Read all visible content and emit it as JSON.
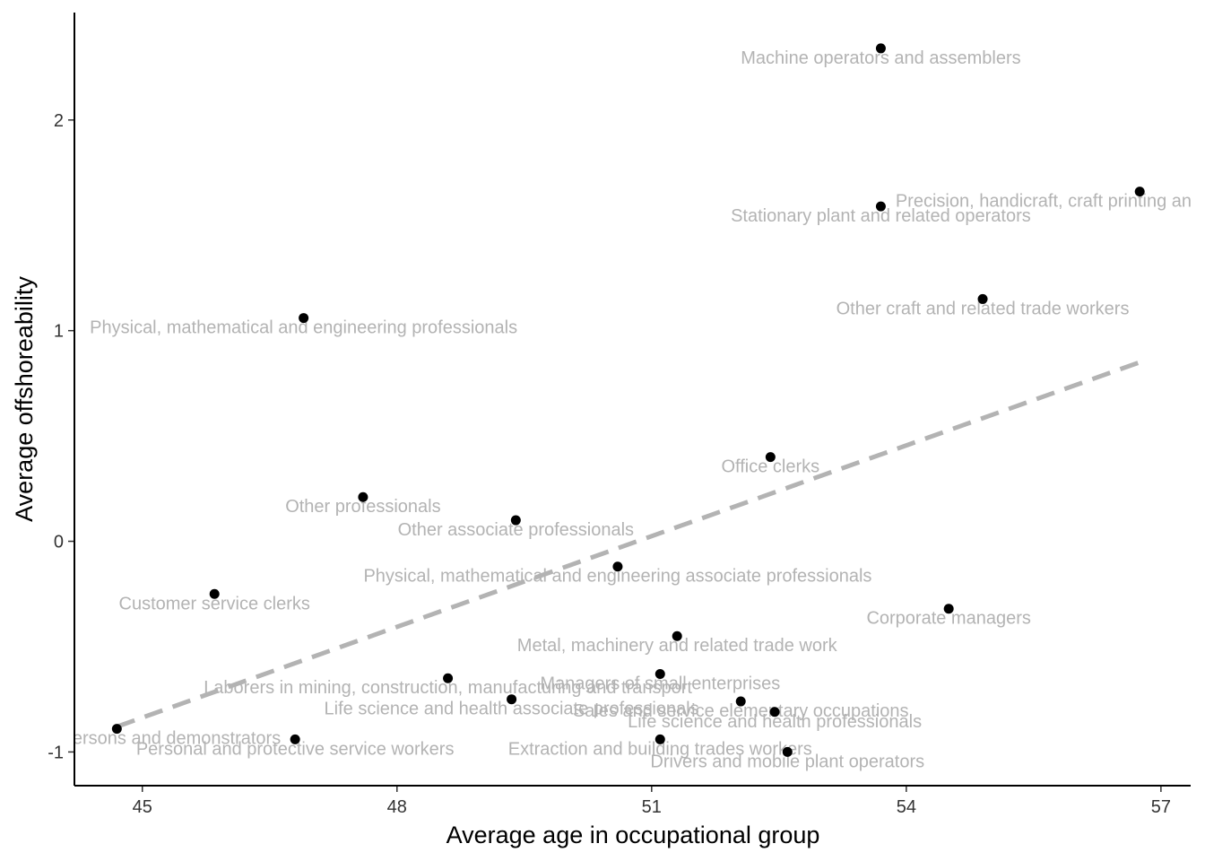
{
  "chart_data": {
    "type": "scatter",
    "xlabel": "Average age in occupational group",
    "ylabel": "Average offshoreability",
    "xlim": [
      44.2,
      57.35
    ],
    "ylim": [
      -1.16,
      2.51
    ],
    "x_ticks": [
      45,
      48,
      51,
      54,
      57
    ],
    "y_ticks": [
      -1,
      0,
      1,
      2
    ],
    "grid": false,
    "point_color": "#000000",
    "label_color": "#b3b3b3",
    "trend_color": "#b3b3b3",
    "trend_line": {
      "style": "dashed",
      "x": [
        44.7,
        56.75
      ],
      "y": [
        -0.88,
        0.85
      ]
    },
    "points": [
      {
        "label": "Machine operators and assemblers",
        "x": 53.7,
        "y": 2.34
      },
      {
        "label": "Precision, handicraft, craft printing and related trades workers",
        "x": 56.75,
        "y": 1.66
      },
      {
        "label": "Stationary plant and related operators",
        "x": 53.7,
        "y": 1.59
      },
      {
        "label": "Other craft and related trade workers",
        "x": 54.9,
        "y": 1.15
      },
      {
        "label": "Physical, mathematical and engineering professionals",
        "x": 46.9,
        "y": 1.06
      },
      {
        "label": "Office clerks",
        "x": 52.4,
        "y": 0.4
      },
      {
        "label": "Other professionals",
        "x": 47.6,
        "y": 0.21
      },
      {
        "label": "Other associate professionals",
        "x": 49.4,
        "y": 0.1
      },
      {
        "label": "Physical, mathematical and engineering associate professionals",
        "x": 50.6,
        "y": -0.12
      },
      {
        "label": "Customer service clerks",
        "x": 45.85,
        "y": -0.25
      },
      {
        "label": "Corporate managers",
        "x": 54.5,
        "y": -0.32
      },
      {
        "label": "Metal, machinery and related trade work",
        "x": 51.3,
        "y": -0.45
      },
      {
        "label": "Managers of small enterprises",
        "x": 51.1,
        "y": -0.63
      },
      {
        "label": "Laborers in mining, construction, manufacturing and transport",
        "x": 48.6,
        "y": -0.65
      },
      {
        "label": "Life science and health associate professionals",
        "x": 49.35,
        "y": -0.75
      },
      {
        "label": "Life science and health professionals",
        "x": 52.45,
        "y": -0.81
      },
      {
        "label": "Sales and service elementary occupations",
        "x": 52.05,
        "y": -0.76
      },
      {
        "label": "Models, salespersons and demonstrators",
        "x": 44.7,
        "y": -0.89
      },
      {
        "label": "Personal and protective service workers",
        "x": 46.8,
        "y": -0.94
      },
      {
        "label": "Extraction and building trades workers",
        "x": 51.1,
        "y": -0.94
      },
      {
        "label": "Drivers and mobile plant operators",
        "x": 52.6,
        "y": -1.0
      }
    ]
  }
}
